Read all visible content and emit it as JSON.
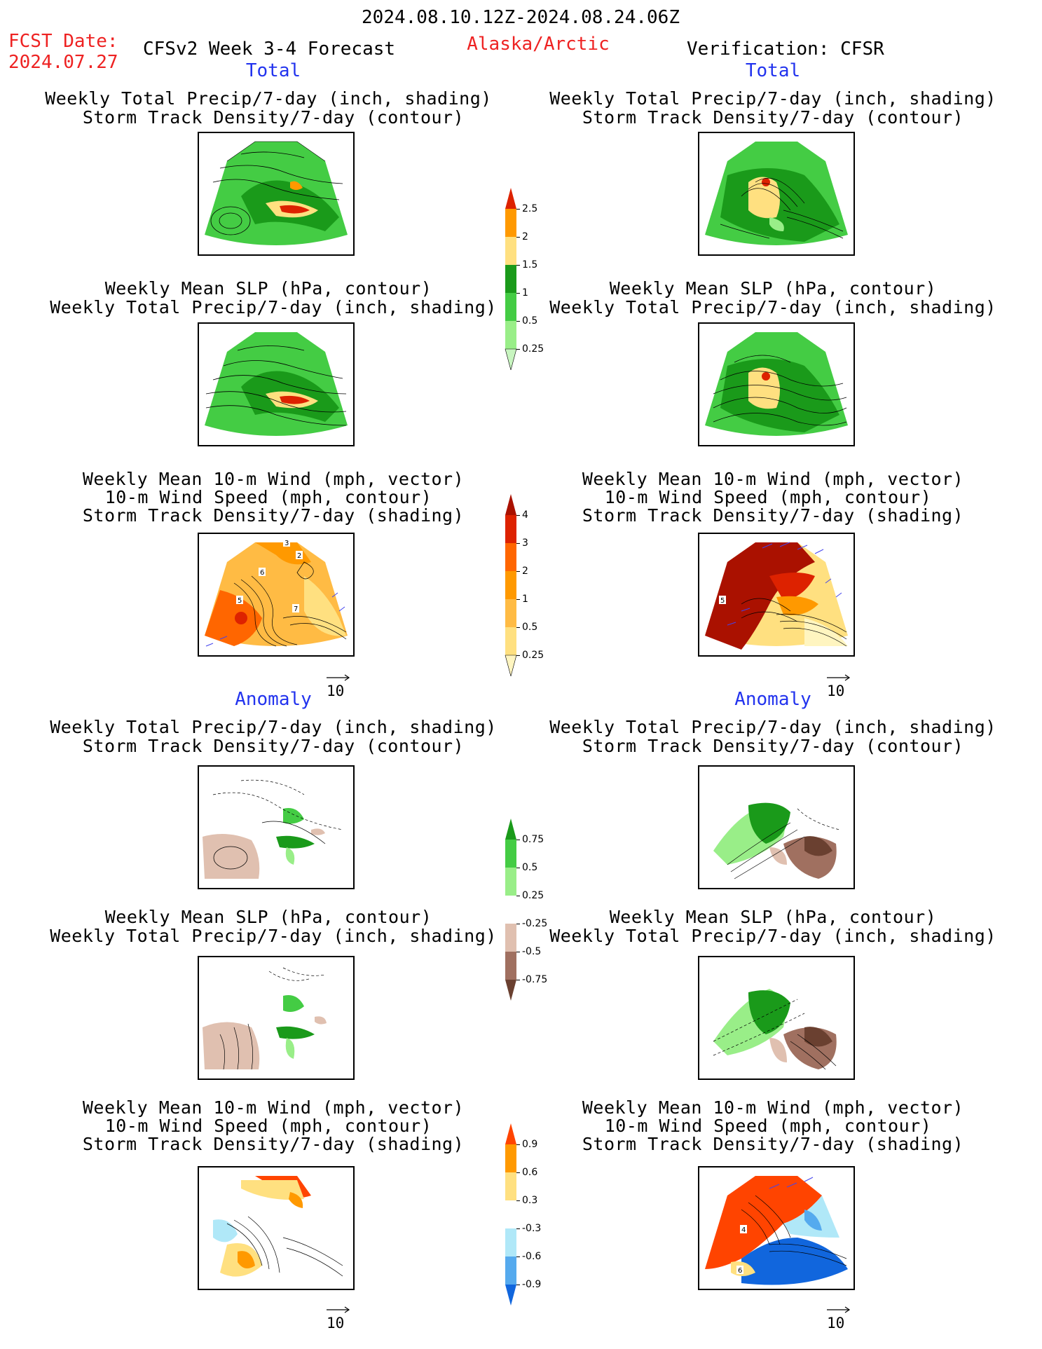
{
  "header": {
    "date_range": "2024.08.10.12Z-2024.08.24.06Z",
    "fcst_label": "FCST Date:",
    "fcst_date": "2024.07.27",
    "model": "CFSv2 Week 3-4 Forecast",
    "region": "Alaska/Arctic",
    "verification": "Verification: CFSR"
  },
  "sections": {
    "total": "Total",
    "anomaly": "Anomaly"
  },
  "panel_titles": {
    "precip_storm": [
      "Weekly Total Precip/7-day (inch, shading)",
      "Storm Track Density/7-day (contour)"
    ],
    "slp_precip": [
      "Weekly Mean SLP (hPa, contour)",
      "Weekly Total Precip/7-day (inch, shading)"
    ],
    "wind_storm": [
      "Weekly Mean 10-m Wind (mph, vector)",
      "10-m Wind Speed (mph, contour)",
      "Storm Track Density/7-day (shading)"
    ]
  },
  "vector_reference": "10",
  "colorbars": [
    {
      "labels": [
        "2.5",
        "2",
        "1.5",
        "1",
        "0.5",
        "0.25"
      ],
      "colors": [
        "#dd2200",
        "#ff9900",
        "#ffe080",
        "#1a9a1a",
        "#44cc44",
        "#99ee88",
        "#c8f5c0"
      ]
    },
    {
      "labels": [
        "4",
        "3",
        "2",
        "1",
        "0.5",
        "0.25"
      ],
      "colors": [
        "#aa1100",
        "#dd2200",
        "#ff6600",
        "#ff9900",
        "#ffbb44",
        "#ffe080",
        "#fff5c0"
      ]
    },
    {
      "labels": [
        "0.75",
        "0.5",
        "0.25",
        "-0.25",
        "-0.5",
        "-0.75"
      ],
      "colors": [
        "#1a9a1a",
        "#44cc44",
        "#99ee88",
        "#ffffff",
        "#e0c0b0",
        "#a07060",
        "#6a4030"
      ]
    },
    {
      "labels": [
        "0.9",
        "0.6",
        "0.3",
        "-0.3",
        "-0.6",
        "-0.9"
      ],
      "colors": [
        "#ff4400",
        "#ff9900",
        "#ffe080",
        "#ffffff",
        "#b0e8f8",
        "#55aaee",
        "#1166dd"
      ]
    }
  ],
  "contour_labels": {
    "fcst_wind_total": [
      "3",
      "2",
      "6",
      "5",
      "7"
    ],
    "cfsr_wind_total": [
      "5"
    ],
    "cfsr_wind_anom": [
      "4",
      "6"
    ]
  },
  "colors": {
    "header_red": "#ee2222",
    "section_blue": "#2233ee"
  }
}
